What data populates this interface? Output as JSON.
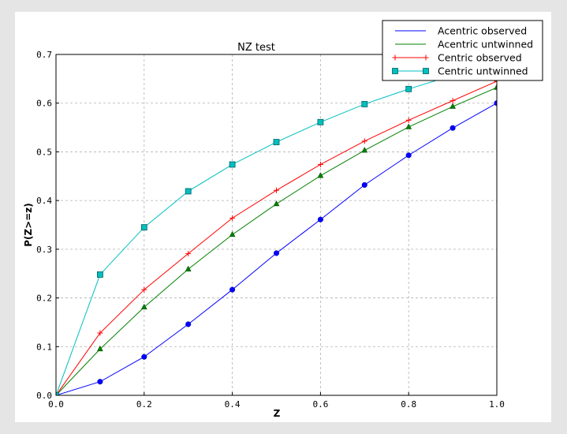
{
  "chart_data": {
    "type": "line",
    "title": "NZ test",
    "xlabel": "Z",
    "ylabel": "P(Z>=z)",
    "xlim": [
      0,
      1.0
    ],
    "ylim": [
      0,
      0.7
    ],
    "grid": true,
    "legend_position": "top-right",
    "x": [
      0.0,
      0.1,
      0.2,
      0.3,
      0.4,
      0.5,
      0.6,
      0.7,
      0.8,
      0.9,
      1.0
    ],
    "xticks": [
      "0.0",
      "0.2",
      "0.4",
      "0.6",
      "0.8",
      "1.0"
    ],
    "yticks": [
      "0.0",
      "0.1",
      "0.2",
      "0.3",
      "0.4",
      "0.5",
      "0.6",
      "0.7"
    ],
    "series": [
      {
        "name": "Acentric observed",
        "color": "#0000ff",
        "marker": "circle",
        "values": [
          0.0,
          0.028,
          0.079,
          0.146,
          0.217,
          0.292,
          0.361,
          0.432,
          0.493,
          0.549,
          0.6
        ]
      },
      {
        "name": "Acentric untwinned",
        "color": "#008000",
        "marker": "triangle",
        "values": [
          0.0,
          0.095,
          0.181,
          0.259,
          0.33,
          0.393,
          0.451,
          0.503,
          0.551,
          0.593,
          0.632
        ]
      },
      {
        "name": "Centric observed",
        "color": "#ff0000",
        "marker": "plus",
        "values": [
          0.0,
          0.128,
          0.217,
          0.291,
          0.364,
          0.421,
          0.474,
          0.522,
          0.565,
          0.605,
          0.645
        ]
      },
      {
        "name": "Centric untwinned",
        "color": "#00bfbf",
        "marker": "square",
        "values": [
          0.0,
          0.248,
          0.345,
          0.419,
          0.474,
          0.52,
          0.561,
          0.598,
          0.629,
          0.657,
          0.683
        ]
      }
    ]
  }
}
